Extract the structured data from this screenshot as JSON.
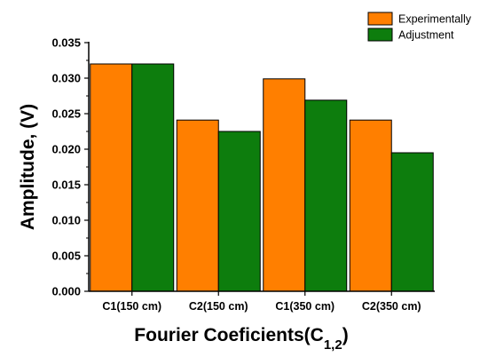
{
  "chart_data": {
    "type": "bar",
    "categories": [
      "C1(150 cm)",
      "C2(150 cm)",
      "C1(350 cm)",
      "C2(350 cm)"
    ],
    "series": [
      {
        "name": "Experimentally",
        "color": "#ff7f00",
        "values": [
          0.032,
          0.0241,
          0.0299,
          0.0241
        ]
      },
      {
        "name": "Adjustment",
        "color": "#0d7d0d",
        "values": [
          0.032,
          0.0225,
          0.0269,
          0.0195
        ]
      }
    ],
    "xlabel_main": "Fourier Coeficients(C",
    "xlabel_sub": "1,2",
    "xlabel_close": ")",
    "ylabel": "Amplitude, (V)",
    "ylim": [
      0,
      0.035
    ],
    "yticks": [
      "0.000",
      "0.005",
      "0.010",
      "0.015",
      "0.020",
      "0.025",
      "0.030",
      "0.035"
    ],
    "legend_position": "top-right",
    "grid": false
  }
}
